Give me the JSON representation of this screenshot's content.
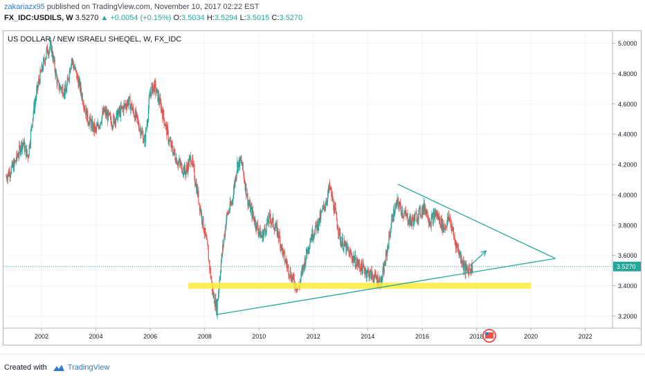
{
  "header": {
    "author": "zakariazx95",
    "published": "published on TradingView.com, November 10, 2017 02:22 EST",
    "symbol_line": "FX_IDC:USDILS, W",
    "last_price": "3.5270",
    "change": "+0.0054 (+0.15%)",
    "open_label": "O:",
    "open": "3.5034",
    "high_label": "H:",
    "high": "3.5294",
    "low_label": "L:",
    "low": "3.5015",
    "close_label": "C:",
    "close": "3.5270"
  },
  "footer": {
    "created_with": "Created with",
    "brand": "TradingView"
  },
  "colors": {
    "up": "#26a69a",
    "down": "#ef5350",
    "trendline": "#26a69a",
    "support_zone": "#ffeb3b",
    "price_tag": "#26a69a"
  },
  "chart_data": {
    "type": "candlestick",
    "title": "US DOLLAR / NEW ISRAELI SHEQEL, W, FX_IDC",
    "interval": "W",
    "xlim": [
      2000.6,
      2023.0
    ],
    "ylim": [
      3.12,
      5.08
    ],
    "x_ticks": [
      "2002",
      "2004",
      "2006",
      "2008",
      "2010",
      "2012",
      "2014",
      "2016",
      "2018",
      "2020",
      "2022"
    ],
    "y_ticks": [
      "3.2000",
      "3.4000",
      "3.6000",
      "3.8000",
      "4.0000",
      "4.2000",
      "4.4000",
      "4.6000",
      "4.8000",
      "5.0000"
    ],
    "grid": true,
    "current_price": "3.5270",
    "price_path": [
      [
        2000.7,
        4.12
      ],
      [
        2001.0,
        4.2
      ],
      [
        2001.3,
        4.35
      ],
      [
        2001.5,
        4.25
      ],
      [
        2001.7,
        4.55
      ],
      [
        2001.9,
        4.75
      ],
      [
        2002.2,
        4.95
      ],
      [
        2002.35,
        4.98
      ],
      [
        2002.6,
        4.72
      ],
      [
        2002.9,
        4.68
      ],
      [
        2003.1,
        4.9
      ],
      [
        2003.4,
        4.72
      ],
      [
        2003.7,
        4.5
      ],
      [
        2004.0,
        4.42
      ],
      [
        2004.3,
        4.55
      ],
      [
        2004.6,
        4.48
      ],
      [
        2004.9,
        4.55
      ],
      [
        2005.2,
        4.62
      ],
      [
        2005.5,
        4.5
      ],
      [
        2005.8,
        4.35
      ],
      [
        2006.0,
        4.68
      ],
      [
        2006.15,
        4.72
      ],
      [
        2006.4,
        4.58
      ],
      [
        2006.7,
        4.35
      ],
      [
        2007.0,
        4.22
      ],
      [
        2007.3,
        4.15
      ],
      [
        2007.5,
        4.25
      ],
      [
        2007.7,
        4.05
      ],
      [
        2007.9,
        3.85
      ],
      [
        2008.1,
        3.65
      ],
      [
        2008.3,
        3.35
      ],
      [
        2008.45,
        3.25
      ],
      [
        2008.6,
        3.55
      ],
      [
        2008.8,
        3.85
      ],
      [
        2009.0,
        3.95
      ],
      [
        2009.2,
        4.2
      ],
      [
        2009.35,
        4.22
      ],
      [
        2009.6,
        3.95
      ],
      [
        2009.9,
        3.8
      ],
      [
        2010.1,
        3.72
      ],
      [
        2010.4,
        3.85
      ],
      [
        2010.7,
        3.75
      ],
      [
        2010.9,
        3.6
      ],
      [
        2011.1,
        3.5
      ],
      [
        2011.3,
        3.42
      ],
      [
        2011.45,
        3.38
      ],
      [
        2011.7,
        3.58
      ],
      [
        2011.9,
        3.72
      ],
      [
        2012.2,
        3.82
      ],
      [
        2012.45,
        3.95
      ],
      [
        2012.6,
        4.05
      ],
      [
        2012.8,
        3.88
      ],
      [
        2013.0,
        3.7
      ],
      [
        2013.3,
        3.62
      ],
      [
        2013.6,
        3.55
      ],
      [
        2013.9,
        3.5
      ],
      [
        2014.2,
        3.46
      ],
      [
        2014.5,
        3.42
      ],
      [
        2014.7,
        3.62
      ],
      [
        2014.9,
        3.85
      ],
      [
        2015.1,
        3.95
      ],
      [
        2015.3,
        3.88
      ],
      [
        2015.6,
        3.82
      ],
      [
        2015.9,
        3.88
      ],
      [
        2016.1,
        3.92
      ],
      [
        2016.3,
        3.82
      ],
      [
        2016.5,
        3.88
      ],
      [
        2016.8,
        3.78
      ],
      [
        2017.0,
        3.85
      ],
      [
        2017.2,
        3.7
      ],
      [
        2017.4,
        3.6
      ],
      [
        2017.6,
        3.5
      ],
      [
        2017.86,
        3.527
      ]
    ],
    "annotations": [
      {
        "type": "trendline",
        "name": "upper-resistance-line",
        "from": [
          2015.1,
          4.07
        ],
        "to": [
          2020.9,
          3.58
        ]
      },
      {
        "type": "trendline",
        "name": "lower-support-line",
        "from": [
          2008.45,
          3.21
        ],
        "to": [
          2020.9,
          3.58
        ]
      },
      {
        "type": "zone",
        "name": "support-zone",
        "x": [
          2007.4,
          2020.0
        ],
        "y": [
          3.38,
          3.42
        ]
      },
      {
        "type": "arrow",
        "name": "projection-arrow",
        "from": [
          2017.75,
          3.53
        ],
        "to": [
          2018.35,
          3.63
        ]
      }
    ]
  }
}
